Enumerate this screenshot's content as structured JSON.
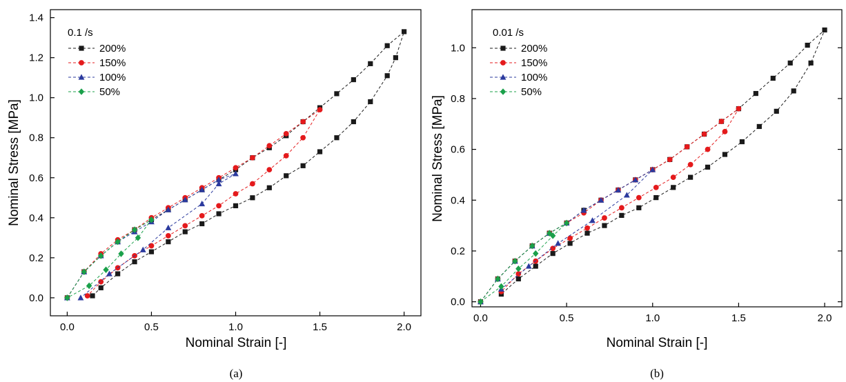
{
  "chart_data": [
    {
      "type": "line",
      "panel_label": "(a)",
      "legend_title": "0.1 /s",
      "xlabel": "Nominal Strain [-]",
      "ylabel": "Nominal Stress [MPa]",
      "xlim": [
        -0.1,
        2.1
      ],
      "ylim": [
        -0.09,
        1.44
      ],
      "xticks": [
        "0.0",
        "0.5",
        "1.0",
        "1.5",
        "2.0"
      ],
      "yticks": [
        "0.0",
        "0.2",
        "0.4",
        "0.6",
        "0.8",
        "1.0",
        "1.2",
        "1.4"
      ],
      "xtick_values": [
        0,
        0.5,
        1.0,
        1.5,
        2.0
      ],
      "ytick_values": [
        0,
        0.2,
        0.4,
        0.6,
        0.8,
        1.0,
        1.2,
        1.4
      ],
      "legend_position": "top-left",
      "series": [
        {
          "name": "200%",
          "color": "#1a1a1a",
          "marker": "square",
          "x": [
            0.0,
            0.1,
            0.2,
            0.3,
            0.4,
            0.5,
            0.6,
            0.7,
            0.8,
            0.9,
            1.0,
            1.1,
            1.2,
            1.3,
            1.4,
            1.5,
            1.6,
            1.7,
            1.8,
            1.9,
            2.0,
            1.95,
            1.9,
            1.8,
            1.7,
            1.6,
            1.5,
            1.4,
            1.3,
            1.2,
            1.1,
            1.0,
            0.9,
            0.8,
            0.7,
            0.6,
            0.5,
            0.4,
            0.3,
            0.2,
            0.15
          ],
          "y": [
            0.0,
            0.13,
            0.21,
            0.28,
            0.34,
            0.39,
            0.44,
            0.49,
            0.54,
            0.59,
            0.64,
            0.7,
            0.75,
            0.81,
            0.88,
            0.95,
            1.02,
            1.09,
            1.17,
            1.26,
            1.33,
            1.2,
            1.11,
            0.98,
            0.88,
            0.8,
            0.73,
            0.66,
            0.61,
            0.55,
            0.5,
            0.46,
            0.42,
            0.37,
            0.33,
            0.28,
            0.23,
            0.18,
            0.12,
            0.05,
            0.01
          ]
        },
        {
          "name": "150%",
          "color": "#e41a1c",
          "marker": "circle",
          "x": [
            0.0,
            0.1,
            0.2,
            0.3,
            0.4,
            0.5,
            0.6,
            0.7,
            0.8,
            0.9,
            1.0,
            1.1,
            1.2,
            1.3,
            1.4,
            1.5,
            1.4,
            1.3,
            1.2,
            1.1,
            1.0,
            0.9,
            0.8,
            0.7,
            0.6,
            0.5,
            0.4,
            0.3,
            0.2,
            0.12
          ],
          "y": [
            0.0,
            0.13,
            0.22,
            0.29,
            0.34,
            0.4,
            0.45,
            0.5,
            0.55,
            0.6,
            0.65,
            0.7,
            0.76,
            0.82,
            0.88,
            0.94,
            0.8,
            0.71,
            0.64,
            0.57,
            0.52,
            0.46,
            0.41,
            0.36,
            0.31,
            0.26,
            0.21,
            0.15,
            0.08,
            0.01
          ]
        },
        {
          "name": "100%",
          "color": "#2b3a9e",
          "marker": "triangle",
          "x": [
            0.0,
            0.1,
            0.2,
            0.3,
            0.4,
            0.5,
            0.6,
            0.7,
            0.8,
            0.9,
            1.0,
            0.9,
            0.8,
            0.6,
            0.45,
            0.25,
            0.08
          ],
          "y": [
            0.0,
            0.13,
            0.21,
            0.28,
            0.33,
            0.38,
            0.44,
            0.49,
            0.54,
            0.59,
            0.62,
            0.57,
            0.47,
            0.35,
            0.24,
            0.12,
            0.0
          ]
        },
        {
          "name": "50%",
          "color": "#1aa04a",
          "marker": "diamond",
          "x": [
            0.0,
            0.1,
            0.2,
            0.3,
            0.4,
            0.5,
            0.42,
            0.32,
            0.23,
            0.13,
            0.0
          ],
          "y": [
            0.0,
            0.13,
            0.21,
            0.28,
            0.34,
            0.39,
            0.3,
            0.22,
            0.14,
            0.06,
            0.0
          ]
        }
      ]
    },
    {
      "type": "line",
      "panel_label": "(b)",
      "legend_title": "0.01 /s",
      "xlabel": "Nominal Strain [-]",
      "ylabel": "Nominal Stress [MPa]",
      "xlim": [
        -0.05,
        2.1
      ],
      "ylim": [
        -0.02,
        1.15
      ],
      "xticks": [
        "0.0",
        "0.5",
        "1.0",
        "1.5",
        "2.0"
      ],
      "yticks": [
        "0.0",
        "0.2",
        "0.4",
        "0.6",
        "0.8",
        "1.0"
      ],
      "xtick_values": [
        0,
        0.5,
        1.0,
        1.5,
        2.0
      ],
      "ytick_values": [
        0,
        0.2,
        0.4,
        0.6,
        0.8,
        1.0
      ],
      "legend_position": "top-left",
      "series": [
        {
          "name": "200%",
          "color": "#1a1a1a",
          "marker": "square",
          "x": [
            0.0,
            0.1,
            0.2,
            0.3,
            0.4,
            0.5,
            0.6,
            0.7,
            0.8,
            0.9,
            1.0,
            1.1,
            1.2,
            1.3,
            1.4,
            1.5,
            1.6,
            1.7,
            1.8,
            1.9,
            2.0,
            1.92,
            1.82,
            1.72,
            1.62,
            1.52,
            1.42,
            1.32,
            1.22,
            1.12,
            1.02,
            0.92,
            0.82,
            0.72,
            0.62,
            0.52,
            0.42,
            0.32,
            0.22,
            0.12
          ],
          "y": [
            0.0,
            0.09,
            0.16,
            0.22,
            0.27,
            0.31,
            0.36,
            0.4,
            0.44,
            0.48,
            0.52,
            0.56,
            0.61,
            0.66,
            0.71,
            0.76,
            0.82,
            0.88,
            0.94,
            1.01,
            1.07,
            0.94,
            0.83,
            0.75,
            0.69,
            0.63,
            0.58,
            0.53,
            0.49,
            0.45,
            0.41,
            0.37,
            0.34,
            0.3,
            0.27,
            0.23,
            0.19,
            0.14,
            0.09,
            0.03
          ]
        },
        {
          "name": "150%",
          "color": "#e41a1c",
          "marker": "circle",
          "x": [
            0.0,
            0.1,
            0.2,
            0.3,
            0.4,
            0.5,
            0.6,
            0.7,
            0.8,
            0.9,
            1.0,
            1.1,
            1.2,
            1.3,
            1.4,
            1.5,
            1.42,
            1.32,
            1.22,
            1.12,
            1.02,
            0.92,
            0.82,
            0.72,
            0.62,
            0.52,
            0.42,
            0.32,
            0.22,
            0.12
          ],
          "y": [
            0.0,
            0.09,
            0.16,
            0.22,
            0.27,
            0.31,
            0.35,
            0.4,
            0.44,
            0.48,
            0.52,
            0.56,
            0.61,
            0.66,
            0.71,
            0.76,
            0.67,
            0.6,
            0.54,
            0.49,
            0.45,
            0.41,
            0.37,
            0.33,
            0.29,
            0.25,
            0.21,
            0.16,
            0.11,
            0.04
          ]
        },
        {
          "name": "100%",
          "color": "#2b3a9e",
          "marker": "triangle",
          "x": [
            0.0,
            0.1,
            0.2,
            0.3,
            0.4,
            0.5,
            0.6,
            0.7,
            0.8,
            0.9,
            1.0,
            0.85,
            0.65,
            0.45,
            0.28,
            0.12
          ],
          "y": [
            0.0,
            0.09,
            0.16,
            0.22,
            0.27,
            0.31,
            0.36,
            0.4,
            0.44,
            0.48,
            0.52,
            0.42,
            0.32,
            0.23,
            0.14,
            0.05
          ]
        },
        {
          "name": "50%",
          "color": "#1aa04a",
          "marker": "diamond",
          "x": [
            0.0,
            0.1,
            0.2,
            0.3,
            0.4,
            0.5,
            0.42,
            0.32,
            0.22,
            0.12,
            0.0
          ],
          "y": [
            0.0,
            0.09,
            0.16,
            0.22,
            0.27,
            0.31,
            0.26,
            0.19,
            0.13,
            0.06,
            0.0
          ]
        }
      ]
    }
  ]
}
